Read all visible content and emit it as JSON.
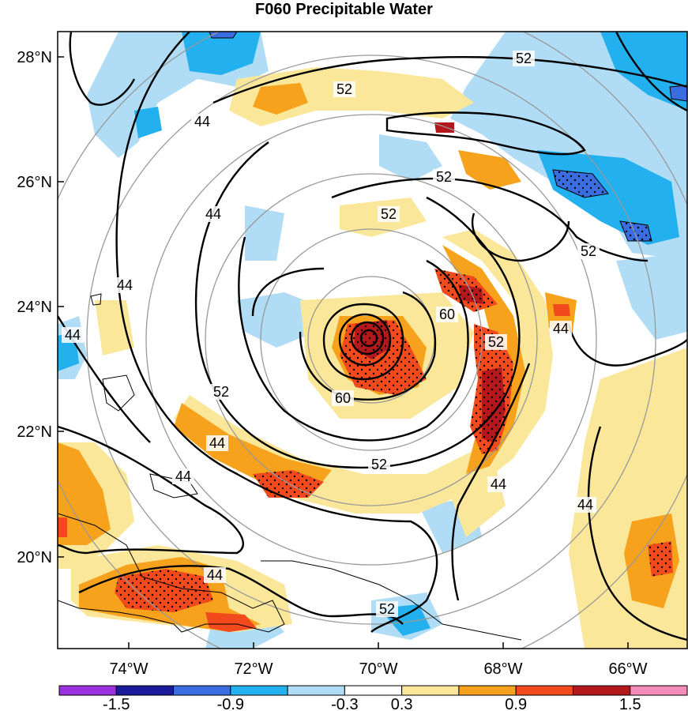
{
  "title": "F060 Precipitable Water",
  "map": {
    "lat_labels": [
      "28°N",
      "26°N",
      "24°N",
      "22°N",
      "20°N"
    ],
    "lon_labels": [
      "74°W",
      "72°W",
      "70°W",
      "68°W",
      "66°W"
    ],
    "contour_labels": [
      "52",
      "52",
      "44",
      "52",
      "52",
      "44",
      "52",
      "44",
      "52",
      "60",
      "60",
      "52",
      "52",
      "44",
      "44",
      "44",
      "44",
      "44",
      "44",
      "44",
      "52"
    ],
    "colors": {
      "purple": "#9b30e0",
      "navy": "#1a1a9a",
      "blue": "#3a6ee0",
      "medblue": "#22b0ee",
      "lightblue": "#b0ddf5",
      "white": "#ffffff",
      "lightyellow": "#fbe79a",
      "orange": "#f7a21c",
      "redorange": "#f24a1c",
      "darkred": "#b3191c",
      "pink": "#f48bb8"
    }
  },
  "colorbar": {
    "labels": [
      "-1.5",
      "-0.9",
      "-0.3",
      "0.3",
      "0.9",
      "1.5"
    ],
    "bins": [
      "#9b30e0",
      "#1a1a9a",
      "#3a6ee0",
      "#22b0ee",
      "#b0ddf5",
      "#ffffff",
      "#fbe79a",
      "#f7a21c",
      "#f24a1c",
      "#b3191c",
      "#f48bb8"
    ]
  }
}
